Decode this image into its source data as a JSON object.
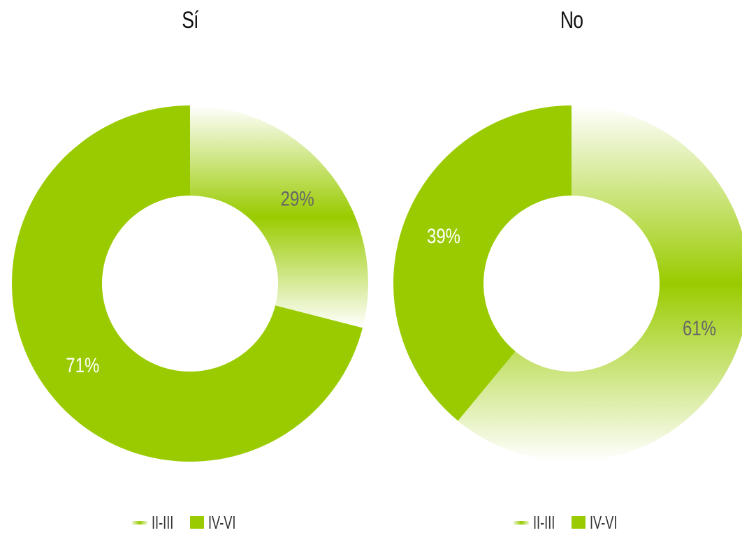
{
  "colors": {
    "solid": "#9acb00",
    "gradient_light": "#ffffff",
    "gradient_mid": "#9acb00",
    "label_light_seg": "#666666",
    "label_solid_seg": "#ffffff"
  },
  "chart_data": [
    {
      "type": "pie",
      "variant": "donut",
      "title": "Sí",
      "slices": [
        {
          "label": "II-III",
          "value": 29,
          "display": "29%",
          "style": "gradient"
        },
        {
          "label": "IV-VI",
          "value": 71,
          "display": "71%",
          "style": "solid"
        }
      ],
      "legend": {
        "placement": "bottom",
        "entries": [
          "II-III",
          "IV-VI"
        ]
      }
    },
    {
      "type": "pie",
      "variant": "donut",
      "title": "No",
      "slices": [
        {
          "label": "II-III",
          "value": 61,
          "display": "61%",
          "style": "gradient"
        },
        {
          "label": "IV-VI",
          "value": 39,
          "display": "39%",
          "style": "solid"
        }
      ],
      "legend": {
        "placement": "bottom",
        "entries": [
          "II-III",
          "IV-VI"
        ]
      }
    }
  ]
}
